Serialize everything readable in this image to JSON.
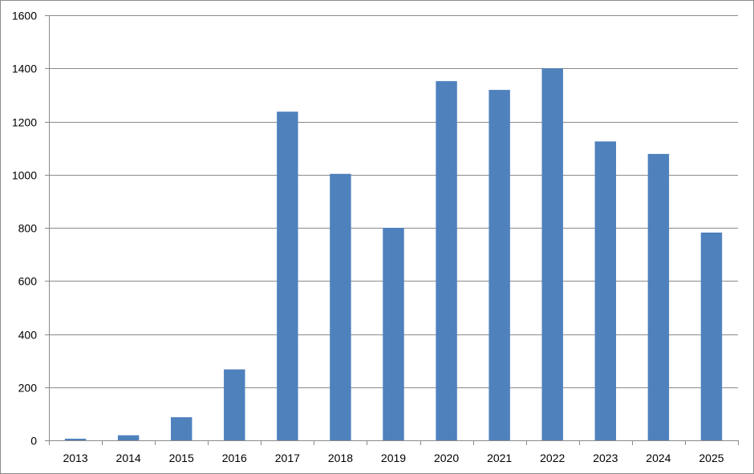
{
  "chart_data": {
    "type": "bar",
    "title": "",
    "xlabel": "",
    "ylabel": "",
    "categories": [
      "2013",
      "2014",
      "2015",
      "2016",
      "2017",
      "2018",
      "2019",
      "2020",
      "2021",
      "2022",
      "2023",
      "2024",
      "2025"
    ],
    "values": [
      6,
      19,
      87,
      267,
      1237,
      1003,
      800,
      1352,
      1319,
      1400,
      1125,
      1078,
      782
    ],
    "ylim": [
      0,
      1600
    ],
    "yticks": [
      "0",
      "200",
      "400",
      "600",
      "800",
      "1000",
      "1200",
      "1400",
      "1600"
    ],
    "grid": true,
    "legend": "none",
    "bar_color": "#4f81bd",
    "grid_color": "#8a8a8a"
  }
}
